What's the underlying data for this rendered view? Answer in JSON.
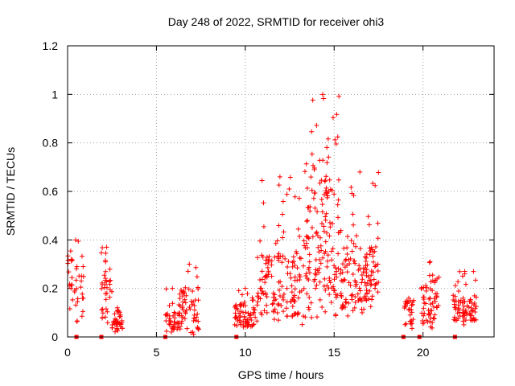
{
  "chart_data": {
    "type": "scatter",
    "title": "Day 248 of 2022, SRMTID for receiver ohi3",
    "xlabel": "GPS time / hours",
    "ylabel": "SRMTID / TECUs",
    "xlim": [
      0,
      24
    ],
    "ylim": [
      0,
      1.2
    ],
    "x_ticks": [
      0,
      5,
      10,
      15,
      20
    ],
    "x_tick_labels": [
      "0",
      "5",
      "10",
      "15",
      "20"
    ],
    "y_ticks": [
      0,
      0.2,
      0.4,
      0.6,
      0.8,
      1.0,
      1.2
    ],
    "y_tick_labels": [
      "0",
      "0.2",
      "0.4",
      "0.6",
      "0.8",
      "1",
      "1.2"
    ],
    "grid": true,
    "marker": "+",
    "series_color": "#ff0000",
    "clusters": [
      {
        "x_start": 0.0,
        "x_end": 0.9,
        "y_min": 0.05,
        "y_max": 0.4,
        "y_center": 0.22,
        "count": 40
      },
      {
        "x_start": 1.9,
        "x_end": 2.5,
        "y_min": 0.05,
        "y_max": 0.37,
        "y_center": 0.18,
        "count": 35
      },
      {
        "x_start": 2.5,
        "x_end": 3.1,
        "y_min": 0.02,
        "y_max": 0.12,
        "y_center": 0.07,
        "count": 40
      },
      {
        "x_start": 5.5,
        "x_end": 6.3,
        "y_min": 0.02,
        "y_max": 0.2,
        "y_center": 0.07,
        "count": 40
      },
      {
        "x_start": 6.3,
        "x_end": 7.4,
        "y_min": 0.01,
        "y_max": 0.3,
        "y_center": 0.12,
        "count": 60
      },
      {
        "x_start": 9.4,
        "x_end": 10.6,
        "y_min": 0.03,
        "y_max": 0.2,
        "y_center": 0.09,
        "count": 70
      },
      {
        "x_start": 10.6,
        "x_end": 13.3,
        "y_min": 0.05,
        "y_max": 0.66,
        "y_center": 0.22,
        "count": 150
      },
      {
        "x_start": 13.3,
        "x_end": 15.4,
        "y_min": 0.08,
        "y_max": 1.0,
        "y_center": 0.4,
        "count": 170
      },
      {
        "x_start": 15.4,
        "x_end": 17.5,
        "y_min": 0.08,
        "y_max": 0.68,
        "y_center": 0.25,
        "count": 140
      },
      {
        "x_start": 18.9,
        "x_end": 19.5,
        "y_min": 0.03,
        "y_max": 0.16,
        "y_center": 0.1,
        "count": 30
      },
      {
        "x_start": 19.9,
        "x_end": 20.9,
        "y_min": 0.03,
        "y_max": 0.31,
        "y_center": 0.15,
        "count": 60
      },
      {
        "x_start": 21.7,
        "x_end": 23.0,
        "y_min": 0.05,
        "y_max": 0.27,
        "y_center": 0.12,
        "count": 80
      }
    ],
    "zero_markers_x": [
      0.5,
      1.9,
      5.5,
      9.5,
      18.9,
      19.8,
      21.8
    ]
  }
}
